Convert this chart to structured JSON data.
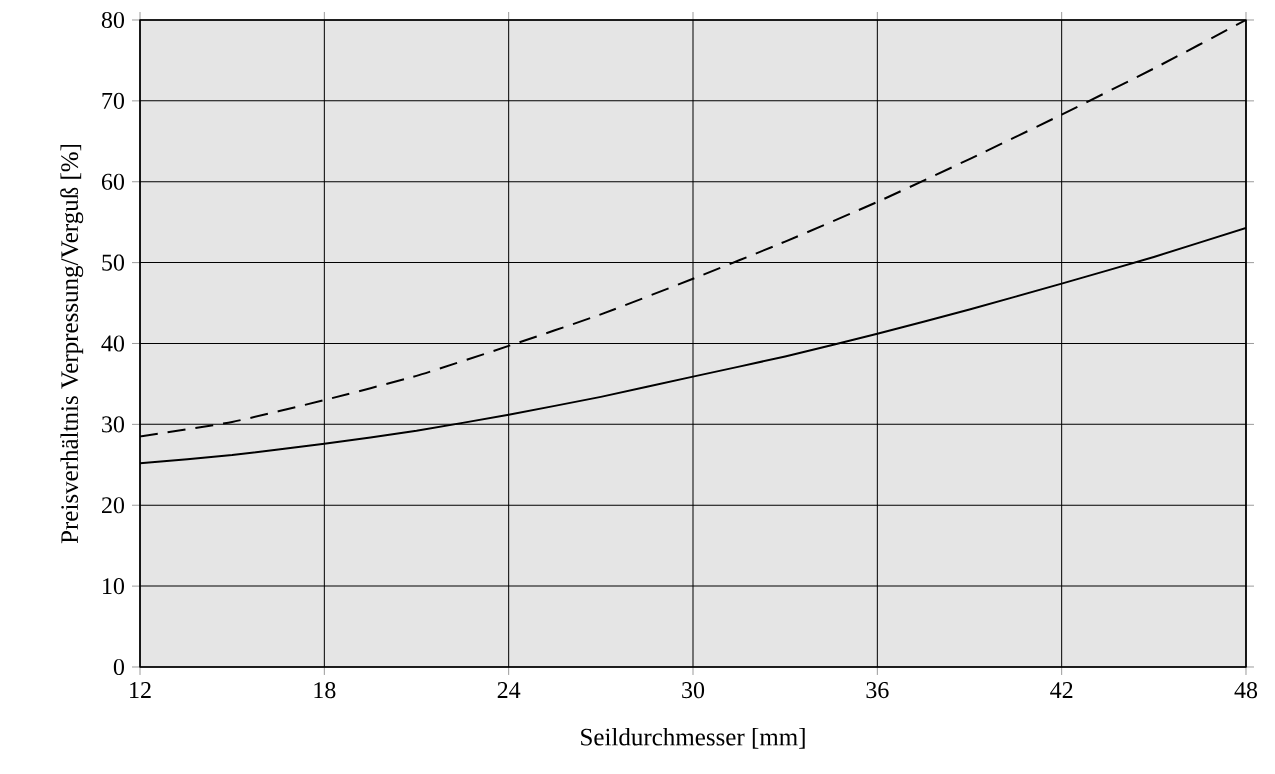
{
  "chart_data": {
    "type": "line",
    "xlabel": "Seildurchmesser [mm]",
    "ylabel": "Preisverhältnis Verpressung/Verguß [%]",
    "x": [
      12,
      15,
      18,
      21,
      24,
      27,
      30,
      33,
      36,
      39,
      42,
      45,
      48
    ],
    "series": [
      {
        "color": "#000000",
        "line_style": "solid",
        "values": [
          25.2,
          26.2,
          27.6,
          29.2,
          31.2,
          33.4,
          35.9,
          38.4,
          41.2,
          44.2,
          47.4,
          50.7,
          54.3
        ]
      },
      {
        "color": "#000000",
        "line_style": "dashed",
        "values": [
          28.5,
          30.3,
          33,
          36,
          39.7,
          43.6,
          48,
          52.6,
          57.5,
          62.8,
          68.3,
          74,
          80
        ]
      }
    ],
    "xlim": [
      12,
      48
    ],
    "xticks": [
      12,
      18,
      24,
      30,
      36,
      42,
      48
    ],
    "ylim": [
      0,
      80
    ],
    "yticks": [
      0,
      10,
      20,
      30,
      40,
      50,
      60,
      70,
      80
    ],
    "grid": true,
    "marker": "none"
  }
}
